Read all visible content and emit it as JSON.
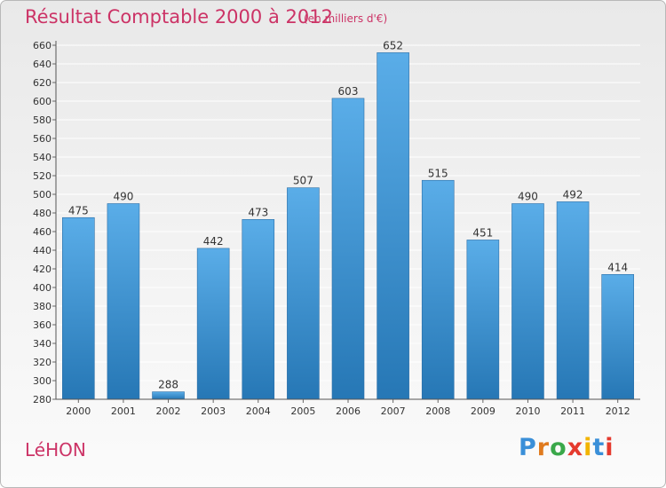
{
  "header": {
    "title": "Résultat Comptable 2000 à 2012",
    "subtitle": "(en milliers d'€)"
  },
  "footer": {
    "place": "LéHON",
    "logo_letters": [
      "P",
      "r",
      "o",
      "x",
      "i",
      "t",
      "i"
    ],
    "logo_colors": [
      "#3a8fd8",
      "#e07b1f",
      "#3aa84a",
      "#e53a2e",
      "#f2b400",
      "#3a8fd8",
      "#e53a2e"
    ]
  },
  "colors": {
    "bar_top": "#5aade8",
    "bar_bottom": "#2677b5",
    "bar_edge": "#2c6ea6",
    "title": "#cc3366",
    "grid": "#ffffff",
    "axis_text": "#333333"
  },
  "chart_data": {
    "type": "bar",
    "title": "Résultat Comptable 2000 à 2012",
    "subtitle": "(en milliers d'€)",
    "xlabel": "",
    "ylabel": "",
    "categories": [
      "2000",
      "2001",
      "2002",
      "2003",
      "2004",
      "2005",
      "2006",
      "2007",
      "2008",
      "2009",
      "2010",
      "2011",
      "2012"
    ],
    "values": [
      475,
      490,
      288,
      442,
      473,
      507,
      603,
      652,
      515,
      451,
      490,
      492,
      414
    ],
    "ylim": [
      280,
      660
    ],
    "yticks": [
      280,
      300,
      320,
      340,
      360,
      380,
      400,
      420,
      440,
      460,
      480,
      500,
      520,
      540,
      560,
      580,
      600,
      620,
      640,
      660
    ],
    "grid": true,
    "legend": "none"
  }
}
